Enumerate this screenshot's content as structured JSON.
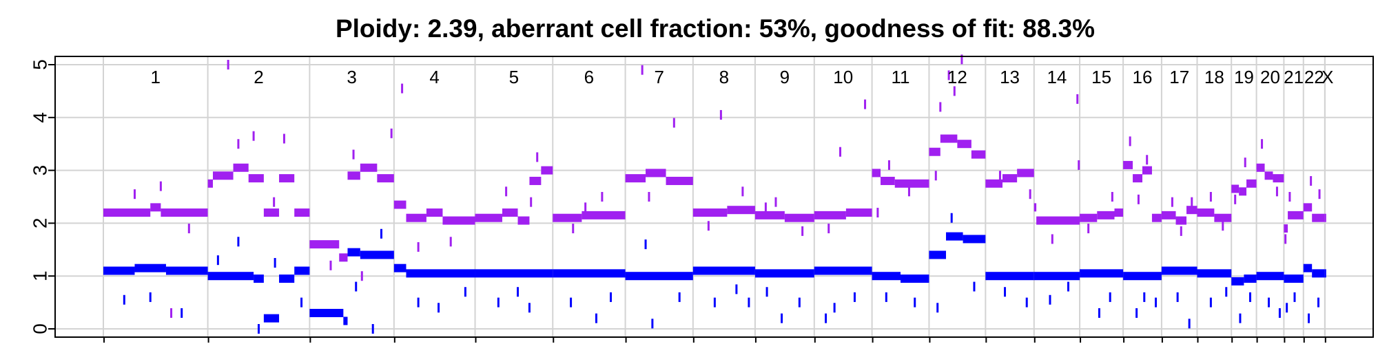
{
  "chart_data": {
    "type": "scatter",
    "title": "Ploidy: 2.39, aberrant cell fraction: 53%, goodness of fit: 88.3%",
    "xlabel": "",
    "ylabel": "",
    "ylim": [
      0,
      5
    ],
    "yticks": [
      "0",
      "1",
      "2",
      "3",
      "4",
      "5"
    ],
    "grid": true,
    "legend": "none",
    "chromosomes": [
      "1",
      "2",
      "3",
      "4",
      "5",
      "6",
      "7",
      "8",
      "9",
      "10",
      "11",
      "12",
      "13",
      "14",
      "15",
      "16",
      "17",
      "18",
      "19",
      "20",
      "21",
      "22",
      "X"
    ],
    "chromosome_widths": [
      0.0796,
      0.0776,
      0.0643,
      0.0618,
      0.0592,
      0.0553,
      0.0516,
      0.0473,
      0.0451,
      0.044,
      0.0435,
      0.043,
      0.037,
      0.0348,
      0.0331,
      0.0293,
      0.0271,
      0.0261,
      0.0191,
      0.0209,
      0.0149,
      0.0163,
      0.0001
    ],
    "colors": {
      "total_copy_number": "#a020f0",
      "minor_copy_number": "#0000ff",
      "grid": "#d3d3d3",
      "axis": "#000000"
    },
    "series": [
      {
        "color": "#a020f0",
        "segments": [
          [
            0.0,
            0.45,
            2.2
          ],
          [
            0.45,
            0.55,
            2.3
          ],
          [
            0.55,
            1.0,
            2.2
          ],
          [
            1.0,
            1.05,
            2.75
          ],
          [
            1.05,
            1.25,
            2.9
          ],
          [
            1.25,
            1.4,
            3.05
          ],
          [
            1.4,
            1.55,
            2.85
          ],
          [
            1.55,
            1.7,
            2.2
          ],
          [
            1.7,
            1.85,
            2.85
          ],
          [
            1.85,
            2.0,
            2.2
          ],
          [
            2.0,
            2.35,
            1.6
          ],
          [
            2.35,
            2.45,
            1.35
          ],
          [
            2.45,
            2.6,
            2.9
          ],
          [
            2.6,
            2.8,
            3.05
          ],
          [
            2.8,
            3.0,
            2.85
          ],
          [
            3.0,
            3.15,
            2.35
          ],
          [
            3.15,
            3.4,
            2.1
          ],
          [
            3.4,
            3.6,
            2.2
          ],
          [
            3.6,
            4.0,
            2.05
          ],
          [
            4.0,
            4.35,
            2.1
          ],
          [
            4.35,
            4.55,
            2.2
          ],
          [
            4.55,
            4.7,
            2.05
          ],
          [
            4.7,
            4.85,
            2.8
          ],
          [
            4.85,
            5.0,
            3.0
          ],
          [
            5.0,
            5.4,
            2.1
          ],
          [
            5.4,
            6.0,
            2.15
          ],
          [
            6.0,
            6.3,
            2.85
          ],
          [
            6.3,
            6.6,
            2.95
          ],
          [
            6.6,
            7.0,
            2.8
          ],
          [
            7.0,
            7.55,
            2.2
          ],
          [
            7.55,
            8.0,
            2.25
          ],
          [
            8.0,
            8.5,
            2.15
          ],
          [
            8.5,
            9.0,
            2.1
          ],
          [
            9.0,
            9.55,
            2.15
          ],
          [
            9.55,
            10.0,
            2.2
          ],
          [
            10.0,
            10.15,
            2.95
          ],
          [
            10.15,
            10.4,
            2.8
          ],
          [
            10.4,
            11.0,
            2.75
          ],
          [
            11.0,
            11.2,
            3.35
          ],
          [
            11.2,
            11.5,
            3.6
          ],
          [
            11.5,
            11.75,
            3.5
          ],
          [
            11.75,
            12.0,
            3.3
          ],
          [
            12.0,
            12.35,
            2.75
          ],
          [
            12.35,
            12.65,
            2.85
          ],
          [
            12.65,
            13.0,
            2.95
          ],
          [
            13.0,
            13.05,
            2.3
          ],
          [
            13.05,
            14.0,
            2.05
          ],
          [
            14.0,
            14.4,
            2.1
          ],
          [
            14.4,
            14.8,
            2.15
          ],
          [
            14.8,
            15.0,
            2.2
          ],
          [
            15.0,
            15.25,
            3.1
          ],
          [
            15.25,
            15.5,
            2.85
          ],
          [
            15.5,
            15.75,
            3.0
          ],
          [
            15.75,
            16.0,
            2.1
          ],
          [
            16.0,
            16.4,
            2.15
          ],
          [
            16.4,
            16.7,
            2.05
          ],
          [
            16.7,
            17.0,
            2.25
          ],
          [
            17.0,
            17.5,
            2.2
          ],
          [
            17.5,
            18.0,
            2.1
          ],
          [
            18.0,
            18.3,
            2.65
          ],
          [
            18.3,
            18.6,
            2.6
          ],
          [
            18.6,
            19.0,
            2.75
          ],
          [
            19.0,
            19.3,
            3.05
          ],
          [
            19.3,
            19.6,
            2.9
          ],
          [
            19.6,
            20.0,
            2.85
          ],
          [
            20.0,
            20.2,
            1.9
          ],
          [
            20.2,
            21.0,
            2.15
          ],
          [
            21.0,
            21.4,
            2.3
          ],
          [
            21.4,
            22.0,
            2.1
          ],
          [
            22.0,
            23.0,
            2.1
          ]
        ],
        "outliers": [
          [
            0.3,
            2.55
          ],
          [
            0.55,
            2.7
          ],
          [
            0.82,
            1.9
          ],
          [
            0.65,
            0.3
          ],
          [
            1.3,
            3.5
          ],
          [
            1.45,
            3.65
          ],
          [
            1.75,
            3.6
          ],
          [
            1.65,
            2.4
          ],
          [
            1.2,
            5.0
          ],
          [
            2.25,
            1.2
          ],
          [
            2.52,
            3.3
          ],
          [
            2.97,
            3.7
          ],
          [
            2.62,
            1.0
          ],
          [
            3.3,
            1.55
          ],
          [
            3.7,
            1.65
          ],
          [
            3.1,
            4.55
          ],
          [
            4.4,
            2.6
          ],
          [
            4.8,
            3.25
          ],
          [
            4.72,
            2.4
          ],
          [
            5.45,
            2.3
          ],
          [
            5.68,
            2.5
          ],
          [
            5.28,
            1.9
          ],
          [
            6.25,
            4.9
          ],
          [
            6.72,
            3.9
          ],
          [
            6.35,
            2.5
          ],
          [
            7.45,
            4.05
          ],
          [
            7.8,
            2.6
          ],
          [
            7.25,
            1.95
          ],
          [
            8.35,
            2.4
          ],
          [
            8.8,
            1.85
          ],
          [
            8.18,
            2.3
          ],
          [
            9.45,
            3.35
          ],
          [
            9.88,
            4.25
          ],
          [
            9.25,
            1.9
          ],
          [
            10.3,
            3.1
          ],
          [
            10.65,
            2.6
          ],
          [
            10.1,
            2.2
          ],
          [
            11.2,
            4.2
          ],
          [
            11.35,
            4.8
          ],
          [
            11.45,
            4.5
          ],
          [
            11.58,
            5.1
          ],
          [
            11.12,
            2.9
          ],
          [
            12.3,
            2.9
          ],
          [
            12.92,
            2.55
          ],
          [
            13.95,
            4.35
          ],
          [
            13.98,
            3.1
          ],
          [
            13.4,
            1.7
          ],
          [
            14.75,
            2.5
          ],
          [
            14.2,
            1.9
          ],
          [
            15.18,
            3.55
          ],
          [
            15.62,
            3.2
          ],
          [
            15.4,
            2.45
          ],
          [
            16.3,
            2.4
          ],
          [
            16.85,
            2.4
          ],
          [
            16.55,
            1.85
          ],
          [
            17.4,
            2.5
          ],
          [
            17.75,
            1.95
          ],
          [
            18.55,
            3.15
          ],
          [
            18.15,
            2.45
          ],
          [
            19.2,
            3.5
          ],
          [
            19.75,
            2.6
          ],
          [
            20.3,
            2.5
          ],
          [
            20.08,
            1.7
          ],
          [
            21.35,
            2.8
          ],
          [
            21.75,
            2.55
          ]
        ]
      },
      {
        "color": "#0000ff",
        "segments": [
          [
            0.0,
            0.3,
            1.1
          ],
          [
            0.3,
            0.6,
            1.15
          ],
          [
            0.6,
            1.0,
            1.1
          ],
          [
            1.0,
            1.45,
            1.0
          ],
          [
            1.45,
            1.55,
            0.95
          ],
          [
            1.55,
            1.7,
            0.2
          ],
          [
            1.7,
            1.85,
            0.95
          ],
          [
            1.85,
            2.0,
            1.1
          ],
          [
            2.0,
            2.4,
            0.3
          ],
          [
            2.4,
            2.45,
            0.15
          ],
          [
            2.45,
            2.6,
            1.45
          ],
          [
            2.6,
            3.0,
            1.4
          ],
          [
            3.0,
            3.15,
            1.15
          ],
          [
            3.15,
            4.0,
            1.05
          ],
          [
            4.0,
            5.0,
            1.05
          ],
          [
            5.0,
            6.0,
            1.05
          ],
          [
            6.0,
            7.0,
            1.0
          ],
          [
            7.0,
            8.0,
            1.1
          ],
          [
            8.0,
            9.0,
            1.05
          ],
          [
            9.0,
            10.0,
            1.1
          ],
          [
            10.0,
            10.5,
            1.0
          ],
          [
            10.5,
            11.0,
            0.95
          ],
          [
            11.0,
            11.3,
            1.4
          ],
          [
            11.3,
            11.6,
            1.75
          ],
          [
            11.6,
            12.0,
            1.7
          ],
          [
            12.0,
            13.0,
            1.0
          ],
          [
            13.0,
            14.0,
            1.0
          ],
          [
            14.0,
            15.0,
            1.05
          ],
          [
            15.0,
            16.0,
            1.0
          ],
          [
            16.0,
            17.0,
            1.1
          ],
          [
            17.0,
            18.0,
            1.05
          ],
          [
            18.0,
            18.5,
            0.9
          ],
          [
            18.5,
            19.0,
            0.95
          ],
          [
            19.0,
            20.0,
            1.0
          ],
          [
            20.0,
            21.0,
            0.95
          ],
          [
            21.0,
            21.4,
            1.15
          ],
          [
            21.4,
            22.0,
            1.05
          ],
          [
            22.0,
            23.0,
            1.05
          ]
        ],
        "outliers": [
          [
            0.2,
            0.55
          ],
          [
            0.45,
            0.6
          ],
          [
            0.75,
            0.3
          ],
          [
            1.1,
            1.3
          ],
          [
            1.3,
            1.65
          ],
          [
            1.5,
            0.0
          ],
          [
            1.66,
            1.25
          ],
          [
            1.92,
            0.5
          ],
          [
            2.55,
            0.8
          ],
          [
            2.85,
            1.8
          ],
          [
            2.75,
            0.0
          ],
          [
            3.55,
            0.4
          ],
          [
            3.88,
            0.7
          ],
          [
            3.3,
            0.5
          ],
          [
            4.3,
            0.5
          ],
          [
            4.7,
            0.4
          ],
          [
            4.55,
            0.7
          ],
          [
            5.25,
            0.5
          ],
          [
            5.6,
            0.2
          ],
          [
            5.8,
            0.6
          ],
          [
            6.3,
            1.6
          ],
          [
            6.4,
            0.1
          ],
          [
            6.8,
            0.6
          ],
          [
            7.35,
            0.5
          ],
          [
            7.7,
            0.75
          ],
          [
            7.9,
            0.5
          ],
          [
            8.45,
            0.2
          ],
          [
            8.75,
            0.5
          ],
          [
            8.2,
            0.7
          ],
          [
            9.35,
            0.4
          ],
          [
            9.7,
            0.6
          ],
          [
            9.2,
            0.2
          ],
          [
            10.25,
            0.6
          ],
          [
            10.75,
            0.5
          ],
          [
            11.15,
            0.4
          ],
          [
            11.4,
            2.1
          ],
          [
            11.8,
            0.8
          ],
          [
            12.4,
            0.7
          ],
          [
            12.85,
            0.5
          ],
          [
            13.35,
            0.55
          ],
          [
            13.75,
            0.8
          ],
          [
            14.45,
            0.3
          ],
          [
            14.7,
            0.6
          ],
          [
            15.35,
            0.3
          ],
          [
            15.55,
            0.6
          ],
          [
            15.85,
            0.5
          ],
          [
            16.45,
            0.6
          ],
          [
            16.78,
            0.1
          ],
          [
            17.4,
            0.5
          ],
          [
            17.85,
            0.7
          ],
          [
            18.35,
            0.2
          ],
          [
            18.75,
            0.6
          ],
          [
            19.45,
            0.5
          ],
          [
            19.85,
            0.3
          ],
          [
            20.15,
            0.4
          ],
          [
            20.55,
            0.6
          ],
          [
            21.25,
            0.2
          ],
          [
            21.7,
            0.5
          ]
        ]
      }
    ]
  }
}
